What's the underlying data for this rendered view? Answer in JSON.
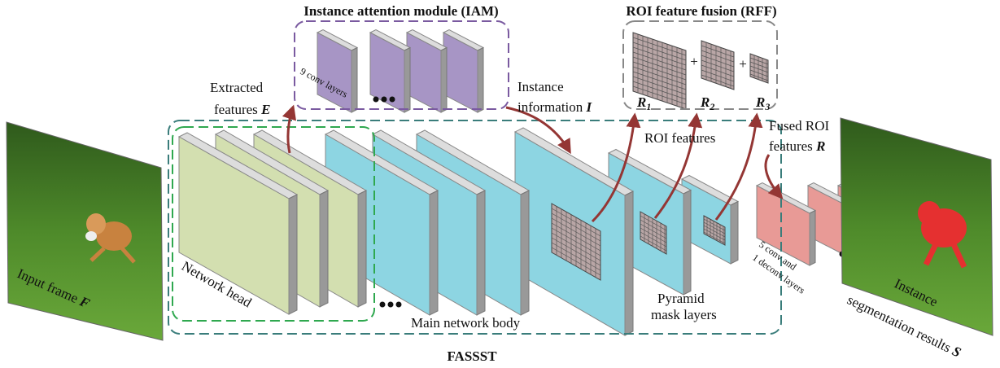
{
  "titles": {
    "iam": "Instance attention module (IAM)",
    "rff": "ROI feature fusion (RFF)",
    "framework": "FASSST"
  },
  "labels": {
    "conv9": "9 conv layers",
    "extracted_line1": "Extracted",
    "extracted_line2": "features",
    "extracted_symbol": "E",
    "instance_line1": "Instance",
    "instance_line2": "information",
    "instance_symbol": "I",
    "r1": "R",
    "r1_sub": "1",
    "r2": "R",
    "r2_sub": "2",
    "r3": "R",
    "r3_sub": "3",
    "roi_features": "ROI features",
    "fused_line1": "Fused ROI",
    "fused_line2": "features",
    "fused_symbol": "R",
    "network_head": "Network head",
    "main_body": "Main network body",
    "pyramid_line1": "Pyramid",
    "pyramid_line2": "mask layers",
    "conv5_line1": "5 conv and",
    "conv5_line2": "1 deconv layers",
    "input_frame": "Input frame",
    "input_symbol": "F",
    "output_line1": "Instance",
    "output_line2": "segmentation results",
    "output_symbol": "S",
    "plus": "+"
  }
}
